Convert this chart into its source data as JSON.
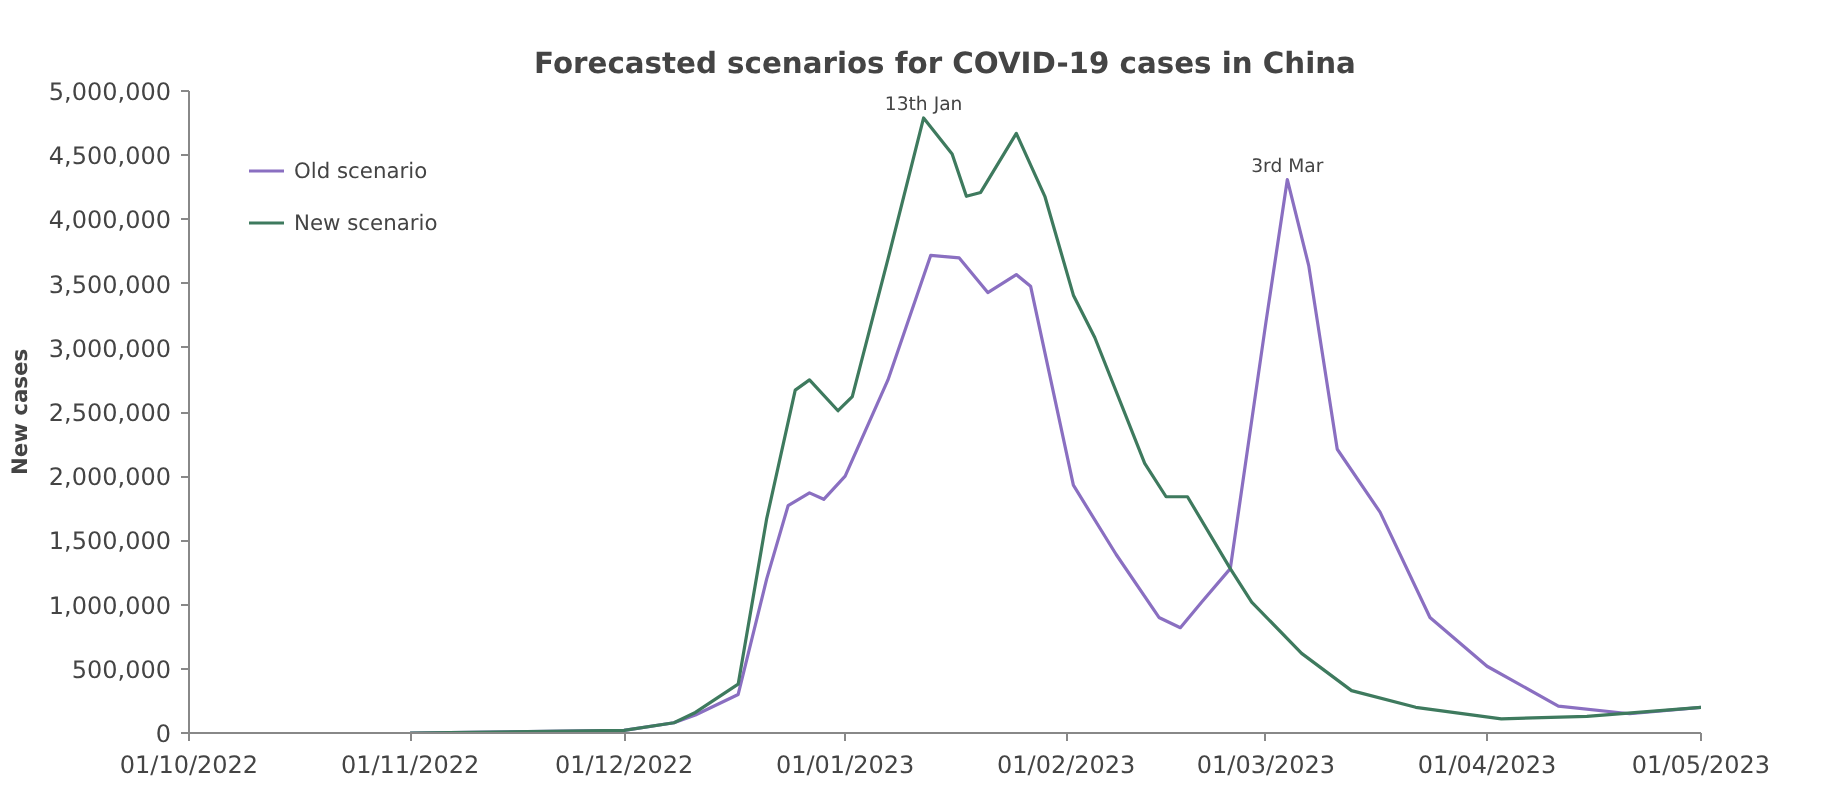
{
  "chart_data": {
    "type": "line",
    "title": "Forecasted scenarios for COVID-19 cases in China",
    "ylabel": "New cases",
    "xlim": [
      "2022-10-01",
      "2023-05-01"
    ],
    "xticks": [
      {
        "value": "2022-10-01",
        "label": "01/10/2022"
      },
      {
        "value": "2022-11-01",
        "label": "01/11/2022"
      },
      {
        "value": "2022-12-01",
        "label": "01/12/2022"
      },
      {
        "value": "2023-01-01",
        "label": "01/01/2023"
      },
      {
        "value": "2023-02-01",
        "label": "01/02/2023"
      },
      {
        "value": "2023-03-01",
        "label": "01/03/2023"
      },
      {
        "value": "2023-04-01",
        "label": "01/04/2023"
      },
      {
        "value": "2023-05-01",
        "label": "01/05/2023"
      }
    ],
    "ylim": [
      0,
      5000000
    ],
    "yticks": [
      0,
      {
        "value": 500000,
        "label": "500,000"
      },
      {
        "value": 1000000,
        "label": "1,000,000"
      },
      {
        "value": 1500000,
        "label": "1,500,000"
      },
      {
        "value": 2000000,
        "label": "2,000,000"
      },
      {
        "value": 2500000,
        "label": "2,500,000"
      },
      {
        "value": 3000000,
        "label": "3,000,000"
      },
      {
        "value": 3500000,
        "label": "3,500,000"
      },
      {
        "value": 4000000,
        "label": "4,000,000"
      },
      {
        "value": 4500000,
        "label": "4,500,000"
      },
      {
        "value": 5000000,
        "label": "5,000,000"
      }
    ],
    "grid": false,
    "legend": "top left",
    "marker": "none",
    "line_style": "solid",
    "annotations": [
      {
        "text": "13th Jan",
        "x": "2023-01-12",
        "y": 4790000
      },
      {
        "text": "3rd Mar",
        "x": "2023-03-04",
        "y": 4310000
      }
    ],
    "series": [
      {
        "name": "Old scenario",
        "color": "#8a6fc1",
        "x": [
          "2022-11-01",
          "2022-12-01",
          "2022-12-08",
          "2022-12-11",
          "2022-12-17",
          "2022-12-21",
          "2022-12-24",
          "2022-12-27",
          "2022-12-29",
          "2023-01-01",
          "2023-01-07",
          "2023-01-13",
          "2023-01-17",
          "2023-01-21",
          "2023-01-25",
          "2023-01-27",
          "2023-02-02",
          "2023-02-08",
          "2023-02-14",
          "2023-02-17",
          "2023-02-20",
          "2023-02-24",
          "2023-03-01",
          "2023-03-04",
          "2023-03-07",
          "2023-03-11",
          "2023-03-17",
          "2023-03-24",
          "2023-04-01",
          "2023-04-11",
          "2023-04-21",
          "2023-05-01"
        ],
        "values": [
          0,
          20000,
          80000,
          140000,
          300000,
          1200000,
          1770000,
          1870000,
          1820000,
          2000000,
          2750000,
          3720000,
          3700000,
          3430000,
          3570000,
          3480000,
          1930000,
          1390000,
          900000,
          820000,
          1020000,
          1280000,
          3200000,
          4310000,
          3640000,
          2210000,
          1720000,
          900000,
          520000,
          210000,
          150000,
          200000
        ]
      },
      {
        "name": "New scenario",
        "color": "#3e7a5e",
        "x": [
          "2022-11-01",
          "2022-12-01",
          "2022-12-08",
          "2022-12-11",
          "2022-12-17",
          "2022-12-21",
          "2022-12-25",
          "2022-12-27",
          "2022-12-31",
          "2023-01-02",
          "2023-01-07",
          "2023-01-12",
          "2023-01-16",
          "2023-01-18",
          "2023-01-20",
          "2023-01-25",
          "2023-01-29",
          "2023-02-02",
          "2023-02-05",
          "2023-02-12",
          "2023-02-15",
          "2023-02-18",
          "2023-02-24",
          "2023-02-27",
          "2023-03-06",
          "2023-03-13",
          "2023-03-22",
          "2023-04-03",
          "2023-04-15",
          "2023-05-01"
        ],
        "values": [
          0,
          20000,
          80000,
          160000,
          380000,
          1670000,
          2670000,
          2750000,
          2510000,
          2620000,
          3690000,
          4790000,
          4510000,
          4180000,
          4210000,
          4670000,
          4180000,
          3410000,
          3080000,
          2100000,
          1840000,
          1840000,
          1280000,
          1020000,
          620000,
          330000,
          200000,
          110000,
          130000,
          200000
        ]
      }
    ]
  }
}
